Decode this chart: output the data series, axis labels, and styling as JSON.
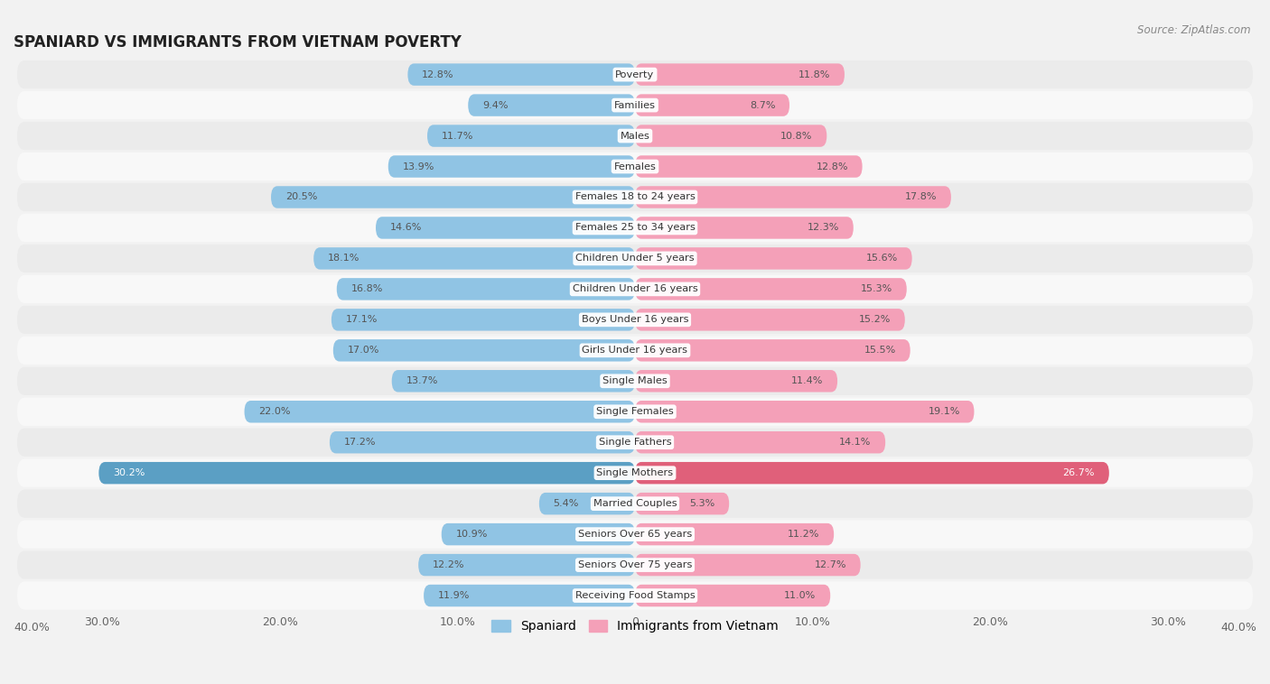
{
  "title": "SPANIARD VS IMMIGRANTS FROM VIETNAM POVERTY",
  "source": "Source: ZipAtlas.com",
  "categories": [
    "Poverty",
    "Families",
    "Males",
    "Females",
    "Females 18 to 24 years",
    "Females 25 to 34 years",
    "Children Under 5 years",
    "Children Under 16 years",
    "Boys Under 16 years",
    "Girls Under 16 years",
    "Single Males",
    "Single Females",
    "Single Fathers",
    "Single Mothers",
    "Married Couples",
    "Seniors Over 65 years",
    "Seniors Over 75 years",
    "Receiving Food Stamps"
  ],
  "spaniard_values": [
    12.8,
    9.4,
    11.7,
    13.9,
    20.5,
    14.6,
    18.1,
    16.8,
    17.1,
    17.0,
    13.7,
    22.0,
    17.2,
    30.2,
    5.4,
    10.9,
    12.2,
    11.9
  ],
  "vietnam_values": [
    11.8,
    8.7,
    10.8,
    12.8,
    17.8,
    12.3,
    15.6,
    15.3,
    15.2,
    15.5,
    11.4,
    19.1,
    14.1,
    26.7,
    5.3,
    11.2,
    12.7,
    11.0
  ],
  "spaniard_color": "#90c4e4",
  "vietnam_color": "#f4a0b8",
  "spaniard_highlight_color": "#5b9fc4",
  "vietnam_highlight_color": "#e0607a",
  "highlight_indices": [
    13
  ],
  "xlim": 35.0,
  "bar_height": 0.72,
  "background_color": "#f2f2f2",
  "row_color_even": "#ebebeb",
  "row_color_odd": "#f8f8f8",
  "legend_spaniard": "Spaniard",
  "legend_vietnam": "Immigrants from Vietnam",
  "x_tick_positions": [
    -30,
    -20,
    -10,
    0,
    10,
    20,
    30
  ],
  "x_tick_labels_left": [
    "30.0%",
    "20.0%",
    "10.0%",
    "0",
    "10.0%",
    "20.0%",
    "30.0%"
  ],
  "x_axis_end_label": "40.0%"
}
